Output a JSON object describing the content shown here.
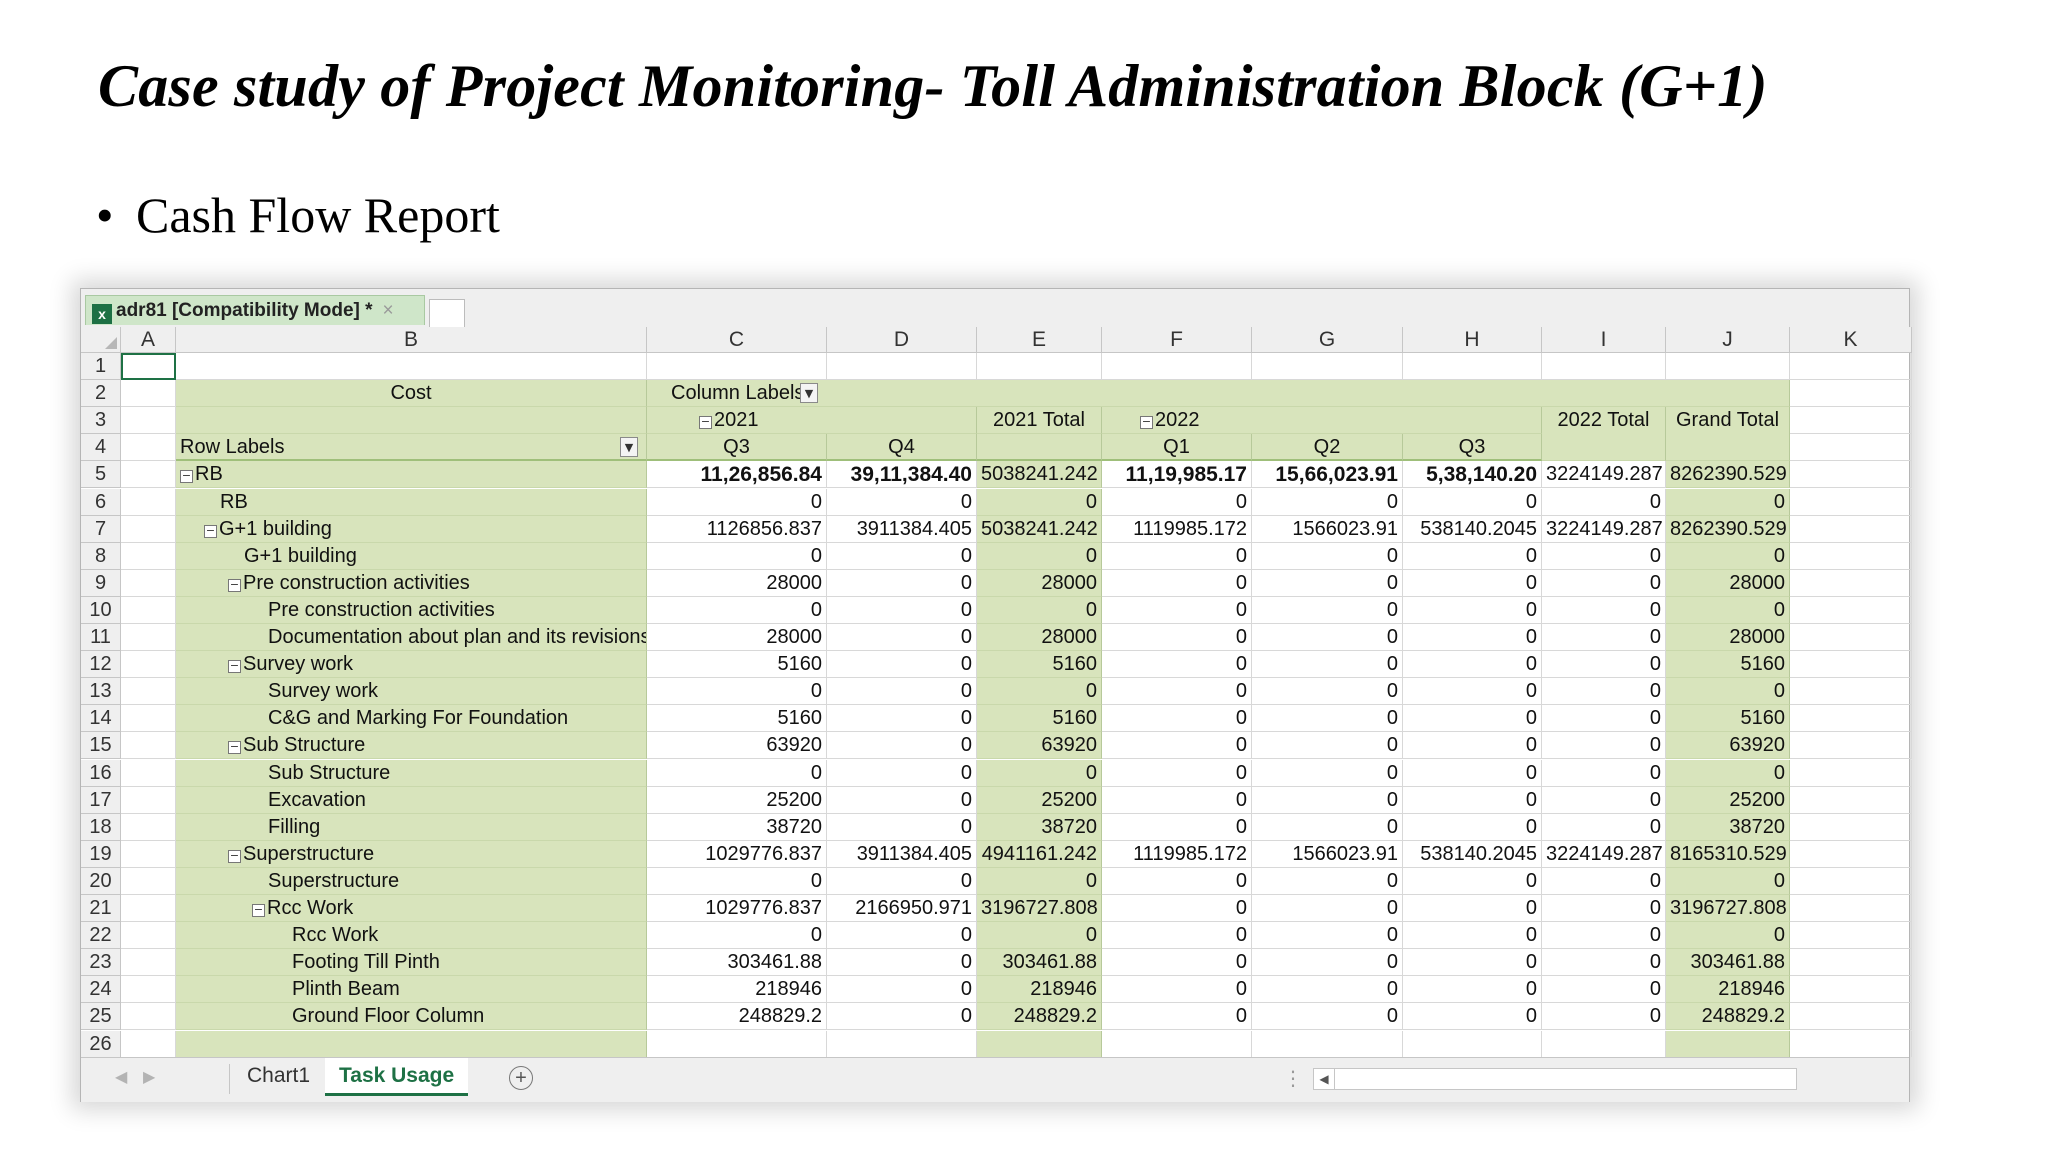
{
  "slide": {
    "title": "Case study of Project Monitoring- Toll Administration Block (G+1)",
    "bullet": "Cash Flow Report"
  },
  "window": {
    "tab_title": "adr81  [Compatibility Mode] *",
    "close_glyph": "×"
  },
  "columns": [
    "A",
    "B",
    "C",
    "D",
    "E",
    "F",
    "G",
    "H",
    "I",
    "J",
    "K"
  ],
  "pivot": {
    "values_label": "Cost",
    "column_labels": "Column Labels",
    "row_labels": "Row Labels",
    "year_2021": "2021",
    "year_2022": "2022",
    "total_2021": "2021 Total",
    "total_2022": "2022 Total",
    "grand_total": "Grand Total",
    "quarters": [
      "Q3",
      "Q4",
      "Q1",
      "Q2",
      "Q3"
    ],
    "rows": [
      {
        "n": "5",
        "label": "RB",
        "indent": 0,
        "toggle": true,
        "bold": true,
        "v": [
          "11,26,856.84",
          "39,11,384.40",
          "5038241.242",
          "11,19,985.17",
          "15,66,023.91",
          "5,38,140.20",
          "3224149.287",
          "8262390.529"
        ]
      },
      {
        "n": "6",
        "label": "RB",
        "indent": 1,
        "toggle": false,
        "bold": false,
        "v": [
          "0",
          "0",
          "0",
          "0",
          "0",
          "0",
          "0",
          "0"
        ]
      },
      {
        "n": "7",
        "label": "G+1 building",
        "indent": 1,
        "toggle": true,
        "bold": false,
        "v": [
          "1126856.837",
          "3911384.405",
          "5038241.242",
          "1119985.172",
          "1566023.91",
          "538140.2045",
          "3224149.287",
          "8262390.529"
        ]
      },
      {
        "n": "8",
        "label": "G+1 building",
        "indent": 2,
        "toggle": false,
        "bold": false,
        "v": [
          "0",
          "0",
          "0",
          "0",
          "0",
          "0",
          "0",
          "0"
        ]
      },
      {
        "n": "9",
        "label": "Pre construction activities",
        "indent": 2,
        "toggle": true,
        "bold": false,
        "v": [
          "28000",
          "0",
          "28000",
          "0",
          "0",
          "0",
          "0",
          "28000"
        ]
      },
      {
        "n": "10",
        "label": "Pre construction activities",
        "indent": 3,
        "toggle": false,
        "bold": false,
        "v": [
          "0",
          "0",
          "0",
          "0",
          "0",
          "0",
          "0",
          "0"
        ]
      },
      {
        "n": "11",
        "label": "Documentation about plan and its revisions",
        "indent": 3,
        "toggle": false,
        "bold": false,
        "v": [
          "28000",
          "0",
          "28000",
          "0",
          "0",
          "0",
          "0",
          "28000"
        ]
      },
      {
        "n": "12",
        "label": "Survey work",
        "indent": 2,
        "toggle": true,
        "bold": false,
        "v": [
          "5160",
          "0",
          "5160",
          "0",
          "0",
          "0",
          "0",
          "5160"
        ]
      },
      {
        "n": "13",
        "label": "Survey work",
        "indent": 3,
        "toggle": false,
        "bold": false,
        "v": [
          "0",
          "0",
          "0",
          "0",
          "0",
          "0",
          "0",
          "0"
        ]
      },
      {
        "n": "14",
        "label": "C&G and Marking For Foundation",
        "indent": 3,
        "toggle": false,
        "bold": false,
        "v": [
          "5160",
          "0",
          "5160",
          "0",
          "0",
          "0",
          "0",
          "5160"
        ]
      },
      {
        "n": "15",
        "label": "Sub Structure",
        "indent": 2,
        "toggle": true,
        "bold": false,
        "v": [
          "63920",
          "0",
          "63920",
          "0",
          "0",
          "0",
          "0",
          "63920"
        ]
      },
      {
        "n": "16",
        "label": "Sub Structure",
        "indent": 3,
        "toggle": false,
        "bold": false,
        "v": [
          "0",
          "0",
          "0",
          "0",
          "0",
          "0",
          "0",
          "0"
        ]
      },
      {
        "n": "17",
        "label": "Excavation",
        "indent": 3,
        "toggle": false,
        "bold": false,
        "v": [
          "25200",
          "0",
          "25200",
          "0",
          "0",
          "0",
          "0",
          "25200"
        ]
      },
      {
        "n": "18",
        "label": "Filling",
        "indent": 3,
        "toggle": false,
        "bold": false,
        "v": [
          "38720",
          "0",
          "38720",
          "0",
          "0",
          "0",
          "0",
          "38720"
        ]
      },
      {
        "n": "19",
        "label": "Superstructure",
        "indent": 2,
        "toggle": true,
        "bold": false,
        "v": [
          "1029776.837",
          "3911384.405",
          "4941161.242",
          "1119985.172",
          "1566023.91",
          "538140.2045",
          "3224149.287",
          "8165310.529"
        ]
      },
      {
        "n": "20",
        "label": "Superstructure",
        "indent": 3,
        "toggle": false,
        "bold": false,
        "v": [
          "0",
          "0",
          "0",
          "0",
          "0",
          "0",
          "0",
          "0"
        ]
      },
      {
        "n": "21",
        "label": "Rcc Work",
        "indent": 3,
        "toggle": true,
        "bold": false,
        "v": [
          "1029776.837",
          "2166950.971",
          "3196727.808",
          "0",
          "0",
          "0",
          "0",
          "3196727.808"
        ]
      },
      {
        "n": "22",
        "label": "Rcc Work",
        "indent": 4,
        "toggle": false,
        "bold": false,
        "v": [
          "0",
          "0",
          "0",
          "0",
          "0",
          "0",
          "0",
          "0"
        ]
      },
      {
        "n": "23",
        "label": "Footing Till Pinth",
        "indent": 4,
        "toggle": false,
        "bold": false,
        "v": [
          "303461.88",
          "0",
          "303461.88",
          "0",
          "0",
          "0",
          "0",
          "303461.88"
        ]
      },
      {
        "n": "24",
        "label": "Plinth Beam",
        "indent": 4,
        "toggle": false,
        "bold": false,
        "v": [
          "218946",
          "0",
          "218946",
          "0",
          "0",
          "0",
          "0",
          "218946"
        ]
      },
      {
        "n": "25",
        "label": "Ground Floor Column",
        "indent": 4,
        "toggle": false,
        "bold": false,
        "v": [
          "248829.2",
          "0",
          "248829.2",
          "0",
          "0",
          "0",
          "0",
          "248829.2"
        ]
      }
    ]
  },
  "sheets": {
    "tabs": [
      "Chart1",
      "Task Usage"
    ],
    "active": "Task Usage",
    "add_glyph": "+"
  },
  "icons": {
    "excel": "excel-icon",
    "collapse": "collapse-toggle-icon",
    "dropdown": "filter-dropdown-icon",
    "add_sheet": "add-sheet-icon"
  },
  "colors": {
    "pivot_green": "#d8e4bc",
    "accent": "#1e7145"
  }
}
